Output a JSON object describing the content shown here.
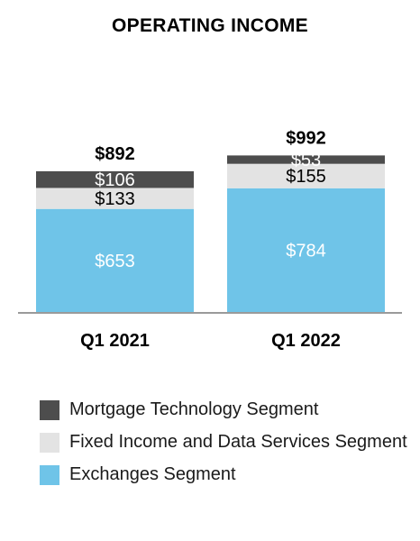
{
  "chart_data": {
    "type": "bar",
    "stacked": true,
    "title": "OPERATING INCOME",
    "categories": [
      "Q1 2021",
      "Q1 2022"
    ],
    "totals": [
      "$892",
      "$992"
    ],
    "series": [
      {
        "name": "Exchanges Segment",
        "values": [
          653,
          784
        ],
        "labels": [
          "$653",
          "$784"
        ],
        "color": "#6fc4e8",
        "label_color": "#ffffff"
      },
      {
        "name": "Fixed Income and Data Services Segment",
        "values": [
          133,
          155
        ],
        "labels": [
          "$133",
          "$155"
        ],
        "color": "#e3e3e3",
        "label_color": "#000000"
      },
      {
        "name": "Mortgage Technology Segment",
        "values": [
          106,
          53
        ],
        "labels": [
          "$106",
          "$53"
        ],
        "color": "#4d4d4d",
        "label_color": "#ffffff"
      }
    ],
    "legend_order": [
      2,
      1,
      0
    ],
    "legend_position": "bottom",
    "grid": false,
    "ylim": [
      0,
      950
    ]
  }
}
